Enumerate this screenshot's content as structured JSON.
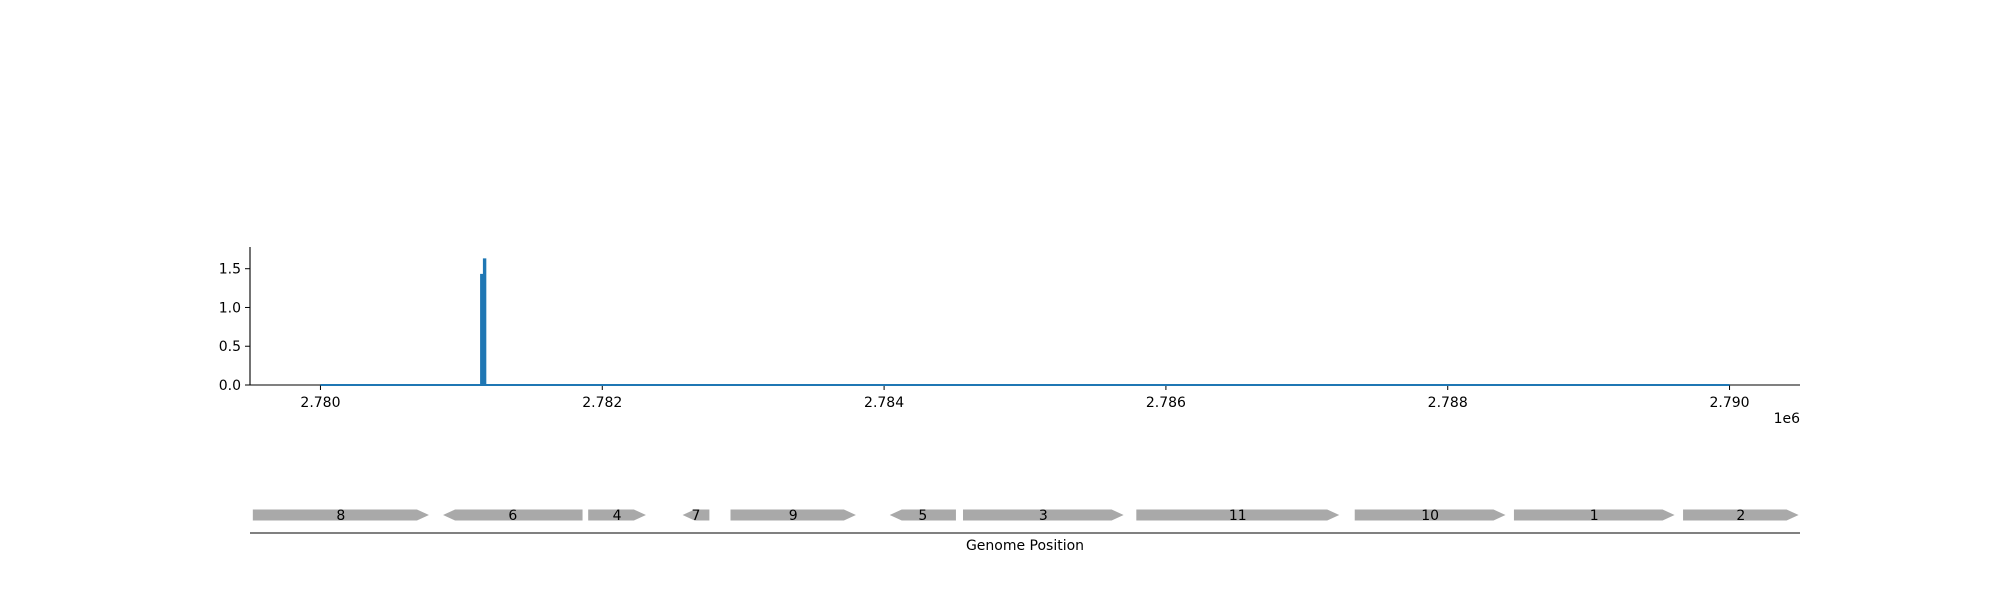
{
  "chart_data": {
    "type": "line",
    "title": "",
    "xlabel": "",
    "ylabel": "",
    "x_offset_label": "1e6",
    "xlim": [
      2779500,
      2790500
    ],
    "ylim": [
      0,
      1.78
    ],
    "xticks": [
      2780000,
      2782000,
      2784000,
      2786000,
      2788000,
      2790000
    ],
    "xtick_labels": [
      "2.780",
      "2.782",
      "2.784",
      "2.786",
      "2.788",
      "2.790"
    ],
    "yticks": [
      0.0,
      0.5,
      1.0,
      1.5
    ],
    "ytick_labels": [
      "0.0",
      "0.5",
      "1.0",
      "1.5"
    ],
    "grid": false,
    "series": [
      {
        "color": "#1f77b4",
        "x": [
          2780000,
          2781140,
          2781140,
          2781150,
          2781150,
          2781160,
          2781160,
          2781170,
          2781170,
          2790000
        ],
        "y": [
          0,
          0,
          1.42,
          1.42,
          0,
          0,
          1.62,
          1.62,
          0,
          0
        ]
      }
    ]
  },
  "gene_track": {
    "xlabel": "Genome Position",
    "gene_color": "#a9a9a9",
    "genes": [
      {
        "label": "8",
        "start": 2779520,
        "end": 2780770,
        "strand": "+"
      },
      {
        "label": "6",
        "start": 2780870,
        "end": 2781860,
        "strand": "-"
      },
      {
        "label": "4",
        "start": 2781900,
        "end": 2782310,
        "strand": "+"
      },
      {
        "label": "7",
        "start": 2782570,
        "end": 2782760,
        "strand": "-"
      },
      {
        "label": "9",
        "start": 2782910,
        "end": 2783800,
        "strand": "+"
      },
      {
        "label": "5",
        "start": 2784040,
        "end": 2784510,
        "strand": "-"
      },
      {
        "label": "3",
        "start": 2784560,
        "end": 2785700,
        "strand": "+"
      },
      {
        "label": "11",
        "start": 2785790,
        "end": 2787230,
        "strand": "+"
      },
      {
        "label": "10",
        "start": 2787340,
        "end": 2788410,
        "strand": "+"
      },
      {
        "label": "1",
        "start": 2788470,
        "end": 2789610,
        "strand": "+"
      },
      {
        "label": "2",
        "start": 2789670,
        "end": 2790490,
        "strand": "+"
      }
    ]
  }
}
